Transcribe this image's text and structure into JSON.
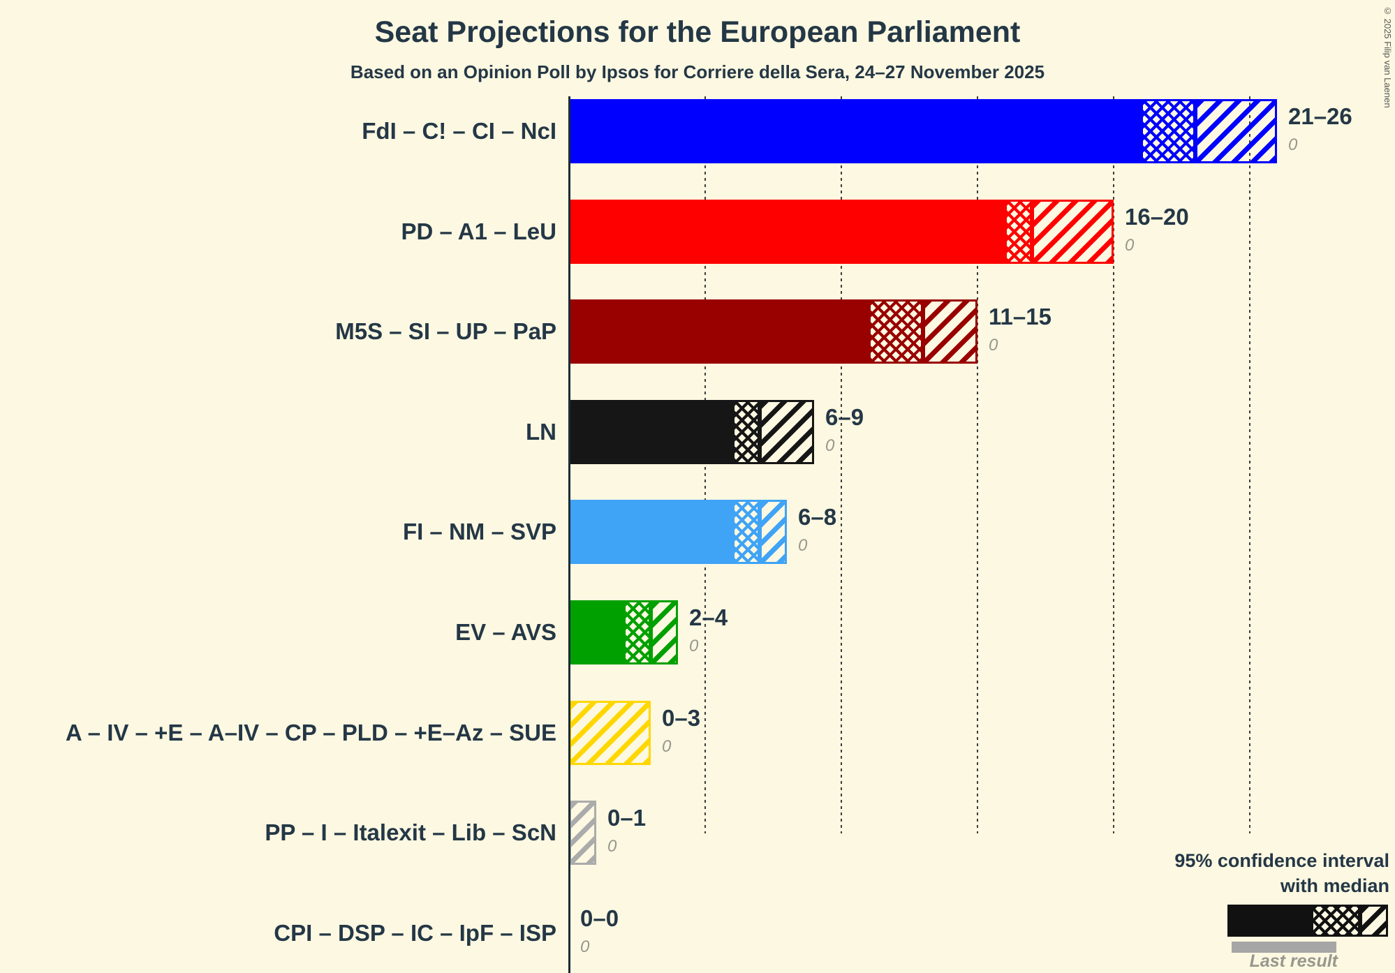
{
  "page": {
    "background": "#FCF8E1",
    "ink_color": "#243746"
  },
  "chart_data": {
    "type": "bar",
    "orientation": "horizontal",
    "title": "Seat Projections for the European Parliament",
    "subtitle": "Based on an Opinion Poll by Ipsos for Corriere della Sera, 24–27 November 2025",
    "x_axis": {
      "min": 0,
      "max": 26,
      "gridlines": [
        5,
        10,
        15,
        20,
        25
      ],
      "gridline_style": "dotted"
    },
    "legend": {
      "ci_line1": "95% confidence interval",
      "ci_line2": "with median",
      "last_result": "Last result"
    },
    "copyright": "© 2025 Filip van Laenen",
    "parties": [
      {
        "label": "FdI – C! – CI – NcI",
        "color": "#0000FF",
        "low": 21,
        "median": 23,
        "high": 26,
        "range_label": "21–26",
        "last_result": "0"
      },
      {
        "label": "PD – A1 – LeU",
        "color": "#FF0000",
        "low": 16,
        "median": 17,
        "high": 20,
        "range_label": "16–20",
        "last_result": "0"
      },
      {
        "label": "M5S – SI – UP – PaP",
        "color": "#990000",
        "low": 11,
        "median": 13,
        "high": 15,
        "range_label": "11–15",
        "last_result": "0"
      },
      {
        "label": "LN",
        "color": "#161616",
        "low": 6,
        "median": 7,
        "high": 9,
        "range_label": "6–9",
        "last_result": "0"
      },
      {
        "label": "FI – NM – SVP",
        "color": "#3FA3F6",
        "low": 6,
        "median": 7,
        "high": 8,
        "range_label": "6–8",
        "last_result": "0"
      },
      {
        "label": "EV – AVS",
        "color": "#00A000",
        "low": 2,
        "median": 3,
        "high": 4,
        "range_label": "2–4",
        "last_result": "0"
      },
      {
        "label": "A – IV – +E – A–IV – CP – PLD – +E–Az – SUE",
        "color": "#FFD700",
        "low": 0,
        "median": 0,
        "high": 3,
        "range_label": "0–3",
        "last_result": "0"
      },
      {
        "label": "PP – I – Italexit – Lib – ScN",
        "color": "#ABABAB",
        "low": 0,
        "median": 0,
        "high": 1,
        "range_label": "0–1",
        "last_result": "0"
      },
      {
        "label": "CPI – DSP – IC – IpF – ISP",
        "color": "#777777",
        "low": 0,
        "median": 0,
        "high": 0,
        "range_label": "0–0",
        "last_result": "0"
      }
    ]
  }
}
